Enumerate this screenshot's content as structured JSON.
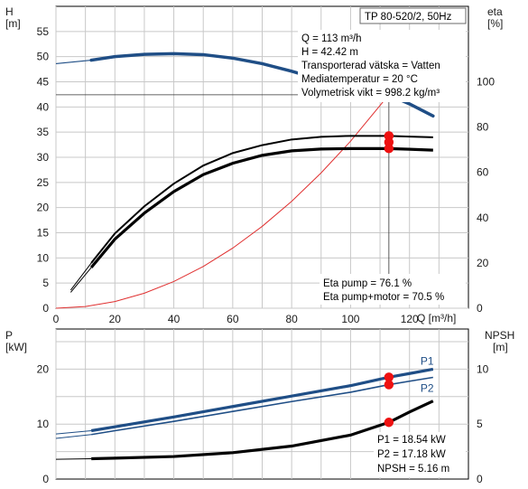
{
  "chart_data": [
    {
      "type": "line",
      "panel": "pump-curves",
      "product_label": "TP 80-520/2, 50Hz",
      "xlabel": "Q [m³/h]",
      "xlim": [
        0,
        140
      ],
      "x_ticks": [
        0,
        20,
        40,
        60,
        80,
        100,
        120
      ],
      "y_left": {
        "label_top": "H",
        "label_unit": "[m]",
        "ylim": [
          0,
          60
        ],
        "ticks": [
          0,
          5,
          10,
          15,
          20,
          25,
          30,
          35,
          40,
          45,
          50,
          55
        ]
      },
      "y_right": {
        "label_top": "eta",
        "label_unit": "[%]",
        "ylim": [
          0,
          133.3
        ],
        "ticks": [
          0,
          20,
          40,
          60,
          80,
          100
        ]
      },
      "grid": true,
      "duty_point_text": [
        "Q = 113 m³/h",
        "H = 42.42 m",
        "Transporterad vätska = Vatten",
        "Mediatemperatur = 20 °C",
        "Volymetrisk vikt = 998.2 kg/m³"
      ],
      "eta_text": [
        "Eta pump = 76.1 %",
        "Eta pump+motor = 70.5 %"
      ],
      "duty_point": {
        "x": 113,
        "y": 42.42
      },
      "operating_marker_x": 113,
      "series": [
        {
          "key": "H",
          "axis": "left",
          "color": "#1f4e86",
          "x": [
            12,
            20,
            30,
            40,
            50,
            60,
            70,
            80,
            90,
            100,
            110,
            113,
            120,
            128
          ],
          "y": [
            49.3,
            50.0,
            50.45,
            50.6,
            50.4,
            49.7,
            48.6,
            47.1,
            45.4,
            43.5,
            42.9,
            42.42,
            40.6,
            38.2
          ],
          "ext_x": [
            0,
            12
          ],
          "ext_y": [
            48.6,
            49.3
          ]
        },
        {
          "key": "system",
          "axis": "left",
          "color": "#e03030",
          "x": [
            0,
            10,
            20,
            30,
            40,
            50,
            60,
            70,
            80,
            90,
            100,
            113
          ],
          "y": [
            0,
            0.33,
            1.33,
            2.99,
            5.31,
            8.3,
            11.95,
            16.27,
            21.25,
            26.9,
            33.2,
            42.42
          ]
        },
        {
          "key": "eta_pump",
          "axis": "right",
          "color": "#000000",
          "x": [
            12,
            20,
            30,
            40,
            50,
            60,
            70,
            80,
            90,
            100,
            113,
            120,
            128
          ],
          "y": [
            20,
            33,
            45,
            55,
            63,
            68.5,
            72,
            74.5,
            75.7,
            76.1,
            76.1,
            75.8,
            75.5
          ],
          "ext_x": [
            5,
            12
          ],
          "ext_y": [
            8,
            20
          ]
        },
        {
          "key": "eta_pump_motor",
          "axis": "right",
          "color": "#000000",
          "x": [
            12,
            20,
            30,
            40,
            50,
            60,
            70,
            80,
            90,
            100,
            113,
            120,
            128
          ],
          "y": [
            18,
            30.5,
            42,
            51.5,
            59,
            64,
            67.5,
            69.5,
            70.3,
            70.5,
            70.5,
            70.2,
            69.8
          ],
          "ext_x": [
            5,
            12
          ],
          "ext_y": [
            7,
            18
          ]
        }
      ],
      "red_markers": [
        {
          "x": 113,
          "y": 76.1,
          "axis": "right"
        },
        {
          "x": 113,
          "y": 73.3,
          "axis": "right"
        },
        {
          "x": 113,
          "y": 70.5,
          "axis": "right"
        }
      ]
    },
    {
      "type": "line",
      "panel": "power-npsh",
      "xlim": [
        0,
        140
      ],
      "x_ticks": [
        0,
        20,
        40,
        60,
        80,
        100,
        120
      ],
      "y_left": {
        "label_top": "P",
        "label_unit": "[kW]",
        "ylim": [
          0,
          27.3
        ],
        "ticks": [
          0,
          10,
          20
        ]
      },
      "y_right": {
        "label_top": "NPSH",
        "label_unit": "[m]",
        "ylim": [
          0,
          13.65
        ],
        "ticks": [
          0,
          5,
          10
        ]
      },
      "grid": true,
      "readout_text": [
        "P1 = 18.54 kW",
        "P2 = 17.18 kW",
        "NPSH = 5.16 m"
      ],
      "series": [
        {
          "key": "P1",
          "name": "P1",
          "axis": "left",
          "color": "#1f4e86",
          "x": [
            12,
            20,
            40,
            60,
            80,
            100,
            113,
            120,
            128
          ],
          "y": [
            8.8,
            9.5,
            11.3,
            13.2,
            15.1,
            17.0,
            18.54,
            19.2,
            20.0
          ],
          "ext_x": [
            0,
            12
          ],
          "ext_y": [
            8.2,
            8.8
          ]
        },
        {
          "key": "P2",
          "name": "P2",
          "axis": "left",
          "color": "#1f4e86",
          "x": [
            12,
            20,
            40,
            60,
            80,
            100,
            113,
            120,
            128
          ],
          "y": [
            8.1,
            8.8,
            10.5,
            12.3,
            14.1,
            15.8,
            17.18,
            17.8,
            18.5
          ],
          "ext_x": [
            0,
            12
          ],
          "ext_y": [
            7.4,
            8.1
          ]
        },
        {
          "key": "NPSH",
          "axis": "right",
          "color": "#000000",
          "x": [
            12,
            20,
            40,
            60,
            80,
            100,
            113,
            120,
            128
          ],
          "y": [
            1.85,
            1.9,
            2.05,
            2.4,
            3.0,
            4.0,
            5.16,
            6.1,
            7.1
          ],
          "ext_x": [
            0,
            12
          ],
          "ext_y": [
            1.8,
            1.85
          ]
        }
      ],
      "red_markers": [
        {
          "x": 113,
          "y": 18.54,
          "axis": "left"
        },
        {
          "x": 113,
          "y": 17.18,
          "axis": "left"
        },
        {
          "x": 113,
          "y": 5.16,
          "axis": "right"
        }
      ]
    }
  ]
}
